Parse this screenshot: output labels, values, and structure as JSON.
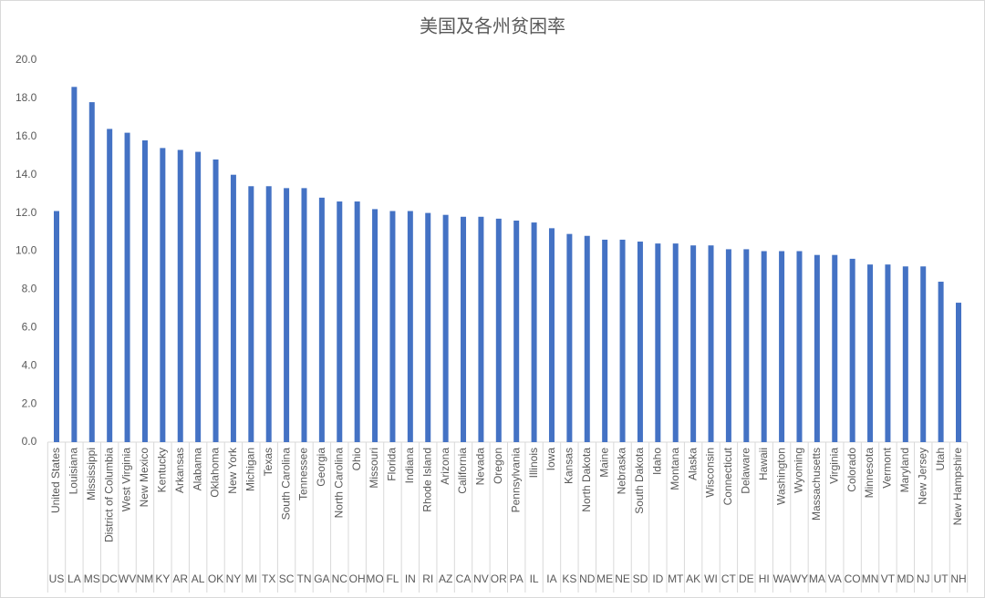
{
  "chart_data": {
    "type": "bar",
    "title": "美国及各州贫困率",
    "categories": [
      "United States",
      "Louisiana",
      "Mississippi",
      "District of Columbia",
      "West Virginia",
      "New Mexico",
      "Kentucky",
      "Arkansas",
      "Alabama",
      "Oklahoma",
      "New York",
      "Michigan",
      "Texas",
      "South Carolina",
      "Tennessee",
      "Georgia",
      "North Carolina",
      "Ohio",
      "Missouri",
      "Florida",
      "Indiana",
      "Rhode Island",
      "Arizona",
      "California",
      "Nevada",
      "Oregon",
      "Pennsylvania",
      "Illinois",
      "Iowa",
      "Kansas",
      "North Dakota",
      "Maine",
      "Nebraska",
      "South Dakota",
      "Idaho",
      "Montana",
      "Alaska",
      "Wisconsin",
      "Connecticut",
      "Delaware",
      "Hawaii",
      "Washington",
      "Wyoming",
      "Massachusetts",
      "Virginia",
      "Colorado",
      "Minnesota",
      "Vermont",
      "Maryland",
      "New Jersey",
      "Utah",
      "New Hampshire"
    ],
    "category_abbreviations": [
      "US",
      "LA",
      "MS",
      "DC",
      "WV",
      "NM",
      "KY",
      "AR",
      "AL",
      "OK",
      "NY",
      "MI",
      "TX",
      "SC",
      "TN",
      "GA",
      "NC",
      "OH",
      "MO",
      "FL",
      "IN",
      "RI",
      "AZ",
      "CA",
      "NV",
      "OR",
      "PA",
      "IL",
      "IA",
      "KS",
      "ND",
      "ME",
      "NE",
      "SD",
      "ID",
      "MT",
      "AK",
      "WI",
      "CT",
      "DE",
      "HI",
      "WA",
      "WY",
      "MA",
      "VA",
      "CO",
      "MN",
      "VT",
      "MD",
      "NJ",
      "UT",
      "NH"
    ],
    "values": [
      12.1,
      18.6,
      17.8,
      16.4,
      16.2,
      15.8,
      15.4,
      15.3,
      15.2,
      14.8,
      14.0,
      13.4,
      13.4,
      13.3,
      13.3,
      12.8,
      12.6,
      12.6,
      12.2,
      12.1,
      12.1,
      12.0,
      11.9,
      11.8,
      11.8,
      11.7,
      11.6,
      11.5,
      11.2,
      10.9,
      10.8,
      10.6,
      10.6,
      10.5,
      10.4,
      10.4,
      10.3,
      10.3,
      10.1,
      10.1,
      10.0,
      10.0,
      10.0,
      9.8,
      9.8,
      9.6,
      9.3,
      9.3,
      9.2,
      9.2,
      8.4,
      7.3
    ],
    "color": "#4472c4",
    "ylim": [
      0,
      20
    ],
    "yticks": [
      {
        "value": 0,
        "label": "0.0"
      },
      {
        "value": 2,
        "label": "2.0"
      },
      {
        "value": 4,
        "label": "4.0"
      },
      {
        "value": 6,
        "label": "6.0"
      },
      {
        "value": 8,
        "label": "8.0"
      },
      {
        "value": 10,
        "label": "10.0"
      },
      {
        "value": 12,
        "label": "12.0"
      },
      {
        "value": 14,
        "label": "14.0"
      },
      {
        "value": 16,
        "label": "16.0"
      },
      {
        "value": 18,
        "label": "18.0"
      },
      {
        "value": 20,
        "label": "20.0"
      }
    ],
    "grid": false
  }
}
